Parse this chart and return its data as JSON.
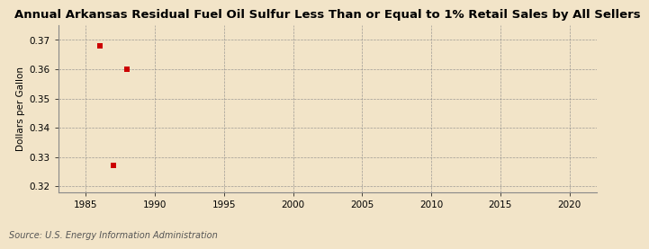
{
  "title": "Annual Arkansas Residual Fuel Oil Sulfur Less Than or Equal to 1% Retail Sales by All Sellers",
  "ylabel": "Dollars per Gallon",
  "source": "Source: U.S. Energy Information Administration",
  "data_x": [
    1986,
    1987,
    1988
  ],
  "data_y": [
    0.368,
    0.327,
    0.36
  ],
  "xlim": [
    1983,
    2022
  ],
  "ylim": [
    0.318,
    0.375
  ],
  "xticks": [
    1985,
    1990,
    1995,
    2000,
    2005,
    2010,
    2015,
    2020
  ],
  "yticks": [
    0.32,
    0.33,
    0.34,
    0.35,
    0.36,
    0.37
  ],
  "background_color": "#f2e4c8",
  "plot_bg_color": "#f2e4c8",
  "marker_color": "#cc0000",
  "marker_size": 4,
  "grid_color": "#888888",
  "title_fontsize": 9.5,
  "axis_fontsize": 7.5,
  "tick_fontsize": 7.5,
  "source_fontsize": 7.0
}
